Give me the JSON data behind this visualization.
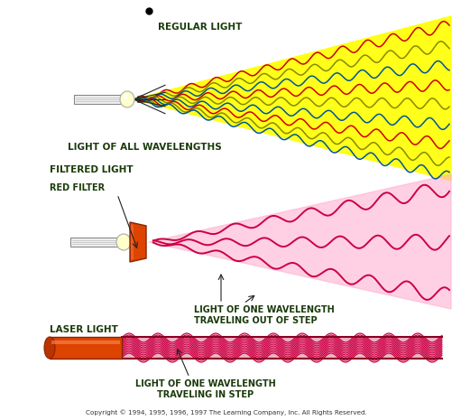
{
  "bg_color": "#ffffff",
  "title_color": "#1a3a0a",
  "label_color": "#1a3a0a",
  "copyright": "Copyright © 1994, 1995, 1996, 1997 The Learning Company, Inc. All Rights Reserved.",
  "panel1": {
    "label": "REGULAR LIGHT",
    "sublabel": "LIGHT OF ALL WAVELENGTHS",
    "beam_color": "#ffff00",
    "beam_alpha": 0.9,
    "wave_colors": [
      "#cc0000",
      "#888800",
      "#005599",
      "#cc0000",
      "#888800",
      "#005599",
      "#cc0000",
      "#888800",
      "#005599"
    ]
  },
  "panel2": {
    "label": "FILTERED LIGHT",
    "sublabel1": "RED FILTER",
    "sublabel2": "LIGHT OF ONE WAVELENGTH\nTRAVELING OUT OF STEP",
    "beam_color": "#ffaacc",
    "beam_alpha": 0.55,
    "filter_color": "#dd4400",
    "wave_color": "#cc0044"
  },
  "panel3": {
    "label": "LASER LIGHT",
    "sublabel": "LIGHT OF ONE WAVELENGTH\nTRAVELING IN STEP",
    "tube_color": "#dd4400",
    "tube_highlight": "#ff8855",
    "wave_color": "#cc0044",
    "n_waves": 12
  }
}
